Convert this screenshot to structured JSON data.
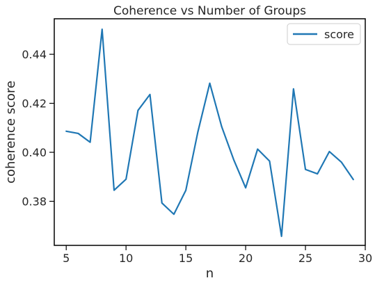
{
  "chart_data": {
    "type": "line",
    "title": "Coherence vs Number of Groups",
    "xlabel": "n",
    "ylabel": "coherence score",
    "xlim": [
      4,
      30
    ],
    "ylim": [
      0.362,
      0.4545
    ],
    "xticks": [
      5,
      10,
      15,
      20,
      25,
      30
    ],
    "yticks": [
      0.38,
      0.4,
      0.42,
      0.44
    ],
    "ytick_labels": [
      "0.38",
      "0.40",
      "0.42",
      "0.44"
    ],
    "grid": false,
    "legend": {
      "placement": "top-right",
      "entries": [
        "score"
      ]
    },
    "series": [
      {
        "name": "score",
        "color": "#1f77b4",
        "x": [
          5,
          6,
          7,
          8,
          9,
          10,
          11,
          12,
          13,
          14,
          15,
          16,
          17,
          18,
          19,
          20,
          21,
          22,
          23,
          24,
          25,
          26,
          27,
          28,
          29
        ],
        "y": [
          0.4086,
          0.4077,
          0.4041,
          0.4502,
          0.3845,
          0.389,
          0.4171,
          0.4236,
          0.3793,
          0.3747,
          0.3845,
          0.4082,
          0.4282,
          0.4104,
          0.397,
          0.3855,
          0.4013,
          0.3964,
          0.3657,
          0.4259,
          0.393,
          0.3912,
          0.4003,
          0.396,
          0.3889
        ]
      }
    ]
  }
}
